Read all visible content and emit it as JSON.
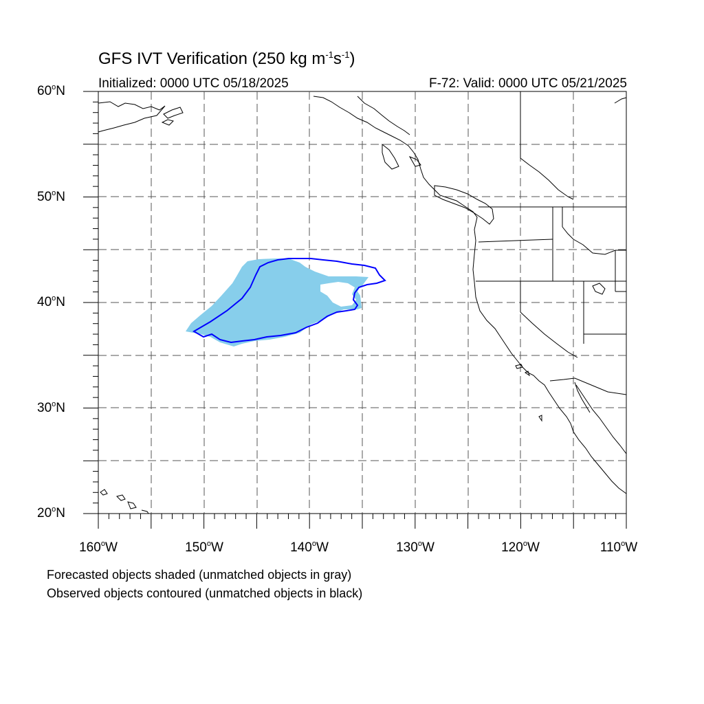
{
  "title": {
    "main": "GFS IVT Verification (250 kg m",
    "exp1": "-1",
    "mid": "s",
    "exp2": "-1",
    "close": ")"
  },
  "subtitle_left": "Initialized: 0000 UTC 05/18/2025",
  "subtitle_right": "F-72: Valid: 0000 UTC 05/21/2025",
  "lat_labels": [
    {
      "value": "60",
      "suffix": "N"
    },
    {
      "value": "50",
      "suffix": "N"
    },
    {
      "value": "40",
      "suffix": "N"
    },
    {
      "value": "30",
      "suffix": "N"
    },
    {
      "value": "20",
      "suffix": "N"
    }
  ],
  "lon_labels": [
    {
      "value": "160",
      "suffix": "W"
    },
    {
      "value": "150",
      "suffix": "W"
    },
    {
      "value": "140",
      "suffix": "W"
    },
    {
      "value": "130",
      "suffix": "W"
    },
    {
      "value": "120",
      "suffix": "W"
    },
    {
      "value": "110",
      "suffix": "W"
    }
  ],
  "footnotes": [
    "Forecasted objects shaded (unmatched objects in gray)",
    "Observed objects contoured (unmatched objects in black)"
  ],
  "colors": {
    "forecast_fill": "#87ceeb",
    "observed_contour": "#0000ff",
    "coastline": "#000000",
    "grid": "#555555"
  },
  "map_extent": {
    "lon_min": -160,
    "lon_max": -110,
    "lat_min": 20,
    "lat_max": 60
  }
}
